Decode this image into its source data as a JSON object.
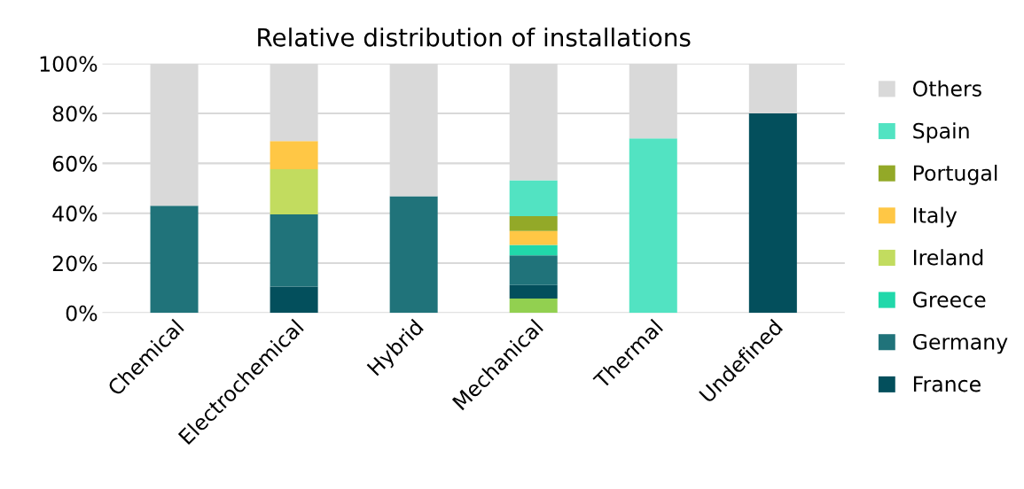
{
  "chart_data": {
    "type": "bar",
    "title": "Relative distribution of installations",
    "stacked": true,
    "categories": [
      "Chemical",
      "Electrochemical",
      "Hybrid",
      "Mechanical",
      "Thermal",
      "Undefined"
    ],
    "series": [
      {
        "color": "#92d050",
        "values": [
          0,
          0,
          0,
          5.8,
          0,
          0
        ]
      },
      {
        "name": "France",
        "color": "#034f5c",
        "values": [
          0,
          10.6,
          0,
          5.4,
          0,
          80
        ]
      },
      {
        "name": "Germany",
        "color": "#20737a",
        "values": [
          43,
          28.9,
          46.8,
          11.9,
          0,
          0
        ]
      },
      {
        "name": "Greece",
        "color": "#21d8aa",
        "values": [
          0,
          0,
          0,
          4.2,
          0,
          0
        ]
      },
      {
        "name": "Ireland",
        "color": "#c2dc5f",
        "values": [
          0,
          18.1,
          0,
          0,
          0,
          0
        ]
      },
      {
        "name": "Italy",
        "color": "#ffc745",
        "values": [
          0,
          11.3,
          0,
          5.6,
          0,
          0
        ]
      },
      {
        "name": "Portugal",
        "color": "#93a928",
        "values": [
          0,
          0,
          0,
          5.9,
          0,
          0
        ]
      },
      {
        "name": "Spain",
        "color": "#52e3c2",
        "values": [
          0,
          0,
          0,
          14.4,
          70,
          0
        ]
      },
      {
        "name": "Others",
        "color": "#d9d9d9",
        "values": [
          57,
          31.1,
          53.2,
          46.8,
          30,
          20
        ]
      }
    ],
    "ylim": [
      0,
      100
    ],
    "yticks": [
      {
        "value": 0,
        "label": "0%"
      },
      {
        "value": 20,
        "label": "20%"
      },
      {
        "value": 40,
        "label": "40%"
      },
      {
        "value": 60,
        "label": "60%"
      },
      {
        "value": 80,
        "label": "80%"
      },
      {
        "value": 100,
        "label": "100%"
      }
    ],
    "grid": "y",
    "legend": "right"
  }
}
